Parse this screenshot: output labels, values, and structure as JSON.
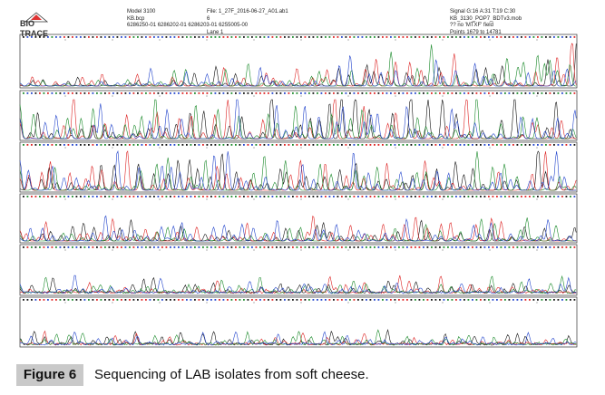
{
  "logo": {
    "line1": "BIO",
    "line2": "TRACE"
  },
  "header": {
    "col1": [
      "Model 3100",
      "KB.bcp",
      "6286250-01 6286202-01 6286203-01 6255005-00"
    ],
    "col2": [
      "File: 1_27F_2016-06-27_A01.ab1",
      "6",
      "Lane 1"
    ],
    "col3": [
      "Signal G:16 A:31 T:19 C:30",
      "KB_3130_POP7_BDTv3.mob",
      "?? no 'MTXF' field",
      "Points 1679 to 14781"
    ]
  },
  "caption": {
    "label": "Figure 6",
    "text": "Sequencing of LAB isolates from soft cheese."
  }
}
